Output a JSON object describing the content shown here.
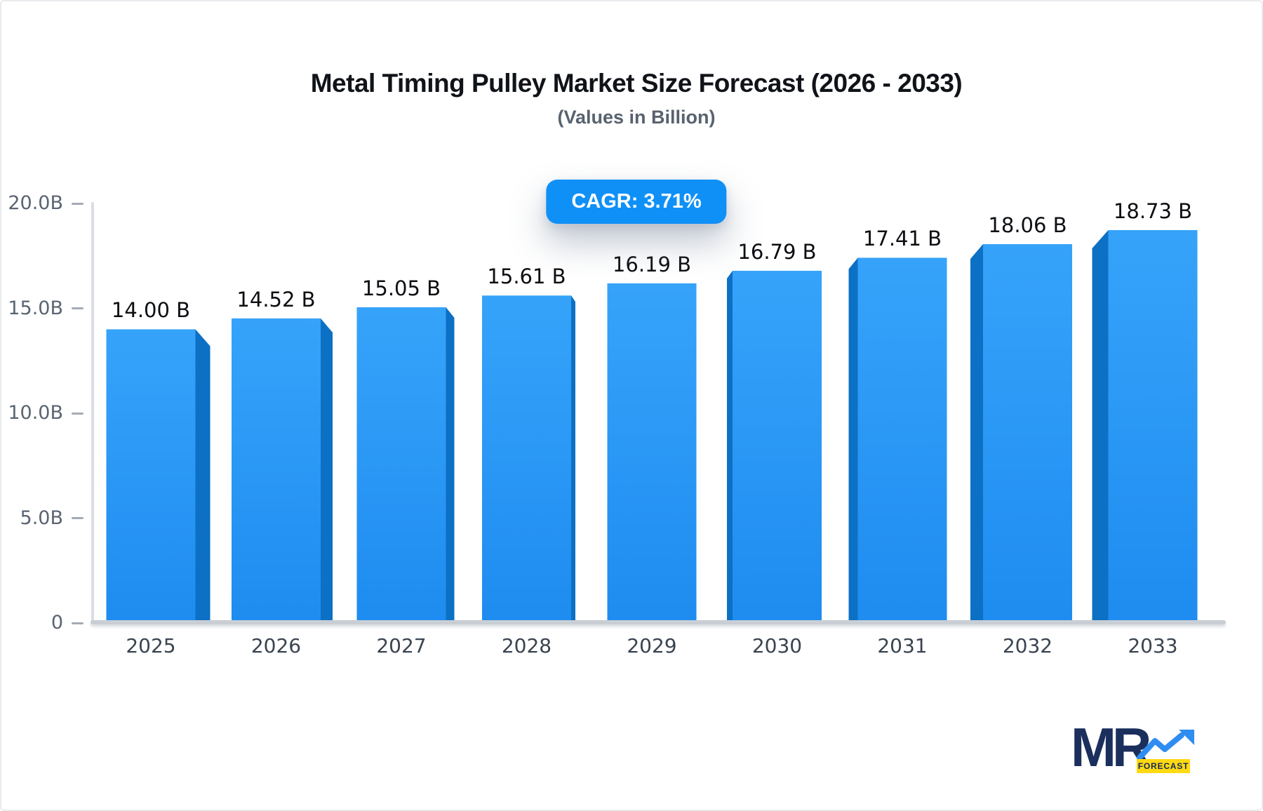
{
  "header": {
    "title": "Metal Timing Pulley Market Size Forecast (2026 - 2033)",
    "subtitle": "(Values in Billion)",
    "cagr_label": "CAGR: 3.71%"
  },
  "chart_data": {
    "type": "bar",
    "title": "Metal Timing Pulley Market Size Forecast (2026 - 2033)",
    "subtitle": "(Values in Billion)",
    "cagr_percent": 3.71,
    "unit": "Billion",
    "categories": [
      "2025",
      "2026",
      "2027",
      "2028",
      "2029",
      "2030",
      "2031",
      "2032",
      "2033"
    ],
    "values": [
      14.0,
      14.52,
      15.05,
      15.61,
      16.19,
      16.79,
      17.41,
      18.06,
      18.73
    ],
    "value_labels": [
      "14.00 B",
      "14.52 B",
      "15.05 B",
      "15.61 B",
      "16.19 B",
      "16.79 B",
      "17.41 B",
      "18.06 B",
      "18.73 B"
    ],
    "ylim": [
      0,
      20
    ],
    "yticks": [
      {
        "value": 0,
        "label": "0"
      },
      {
        "value": 5,
        "label": "5.0B"
      },
      {
        "value": 10,
        "label": "10.0B"
      },
      {
        "value": 15,
        "label": "15.0B"
      },
      {
        "value": 20,
        "label": "20.0B"
      }
    ],
    "grid": false,
    "legend": false,
    "bar_style": {
      "front_top_color": "#36a3fa",
      "front_bottom_color": "#1e8cf0",
      "side_color": "#0c70c4",
      "badge_color": "#0f90f7"
    }
  },
  "logo": {
    "text": "MR",
    "sub_label": "FORECAST",
    "navy": "#1a2f5c",
    "yellow": "#ffd912",
    "arrow_blue": "#2f8df1"
  }
}
